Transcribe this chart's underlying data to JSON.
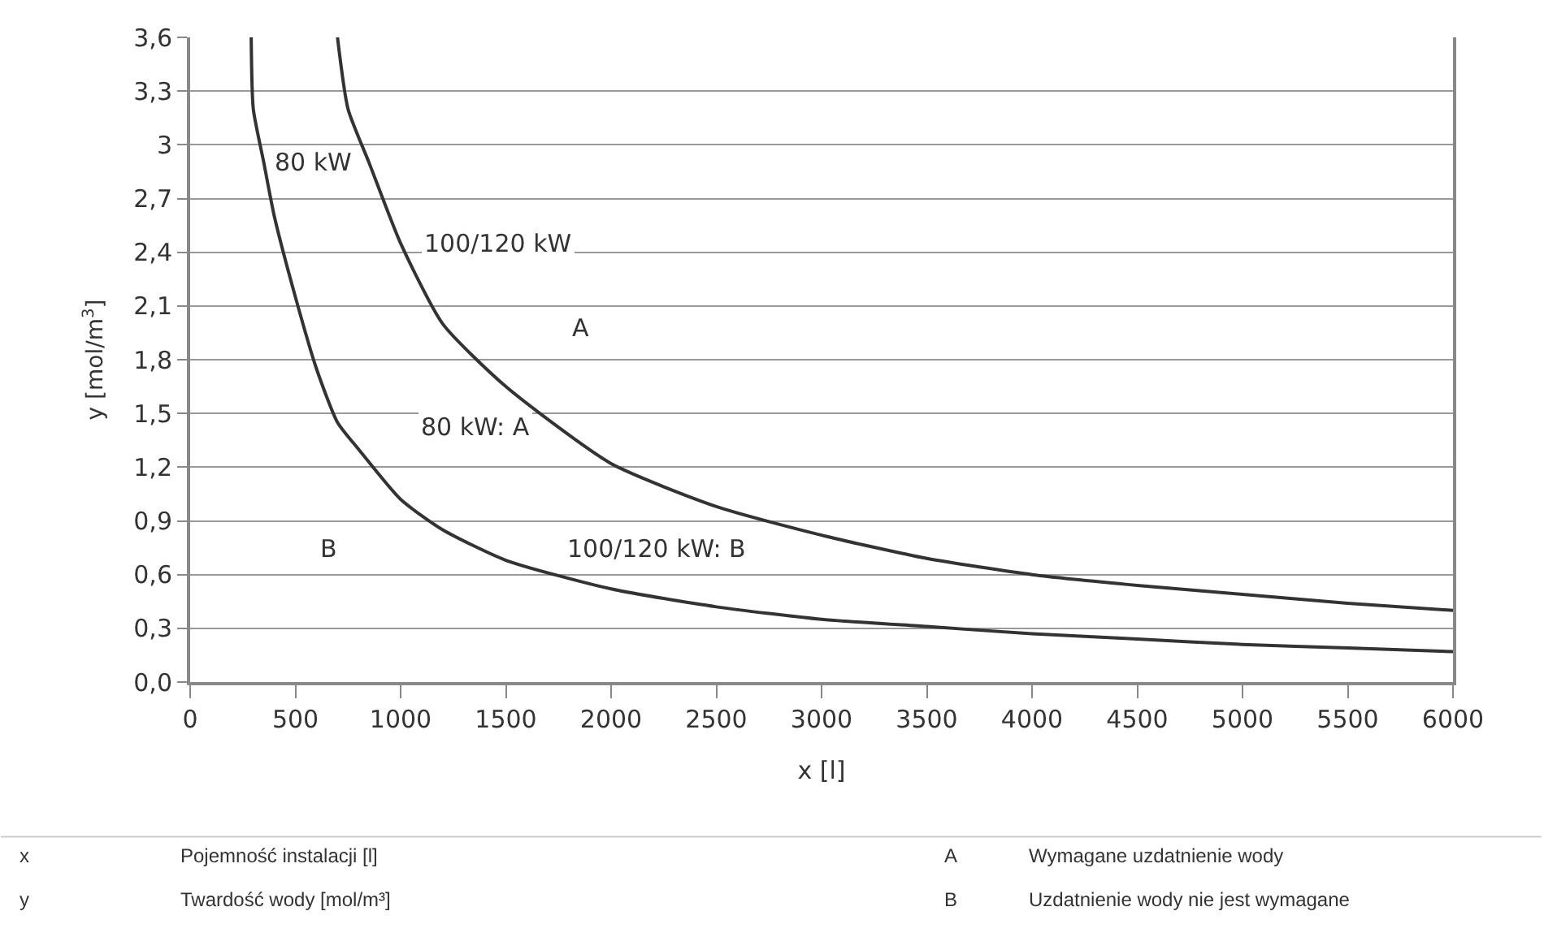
{
  "chart_data": {
    "type": "line",
    "xlabel": "x [l]",
    "ylabel": "y [mol/m$^{3}$]",
    "xlim": [
      0,
      6000
    ],
    "xticks": [
      0,
      500,
      1000,
      1500,
      2000,
      2500,
      3000,
      3500,
      4000,
      4500,
      5000,
      5500,
      6000
    ],
    "ylim": [
      0,
      3.6
    ],
    "yticks": [
      {
        "value": 0,
        "label": "0,0"
      },
      {
        "value": 0.3,
        "label": "0,3"
      },
      {
        "value": 0.6,
        "label": "0,6"
      },
      {
        "value": 0.9,
        "label": "0,9"
      },
      {
        "value": 1.2,
        "label": "1,2"
      },
      {
        "value": 1.5,
        "label": "1,5"
      },
      {
        "value": 1.8,
        "label": "1,8"
      },
      {
        "value": 2.1,
        "label": "2,1"
      },
      {
        "value": 2.4,
        "label": "2,4"
      },
      {
        "value": 2.7,
        "label": "2,7"
      },
      {
        "value": 3,
        "label": "3"
      },
      {
        "value": 3.3,
        "label": "3,3"
      },
      {
        "value": 3.6,
        "label": "3,6"
      }
    ],
    "grid": "y",
    "legend": false,
    "marker": "none",
    "line_style": "solid",
    "series": [
      {
        "name": "80 kW",
        "color": "#333333",
        "x": [
          290,
          300,
          350,
          400,
          500,
          600,
          700,
          800,
          1000,
          1200,
          1500,
          2000,
          2500,
          3000,
          3500,
          4000,
          4500,
          5000,
          5500,
          6000
        ],
        "values": [
          3.6,
          3.2,
          2.9,
          2.6,
          2.15,
          1.75,
          1.45,
          1.3,
          1.02,
          0.85,
          0.68,
          0.52,
          0.42,
          0.35,
          0.31,
          0.27,
          0.24,
          0.21,
          0.19,
          0.17
        ]
      },
      {
        "name": "100/120 kW",
        "color": "#333333",
        "x": [
          700,
          750,
          850,
          1000,
          1200,
          1500,
          2000,
          2500,
          3000,
          3500,
          4000,
          4500,
          5000,
          5500,
          6000
        ],
        "values": [
          3.6,
          3.2,
          2.9,
          2.45,
          2.0,
          1.65,
          1.22,
          0.98,
          0.82,
          0.69,
          0.6,
          0.54,
          0.49,
          0.44,
          0.4
        ]
      }
    ],
    "annotations": [
      "A",
      "80 kW: A",
      "B",
      "100/120 kW: B",
      "x",
      "Pojemność instalacji [l]",
      "y",
      "Twardość wody [mol/m³]",
      "A",
      "Wymagane uzdatnienie wody",
      "B",
      "Uzdatnienie wody nie jest wymagane"
    ]
  }
}
